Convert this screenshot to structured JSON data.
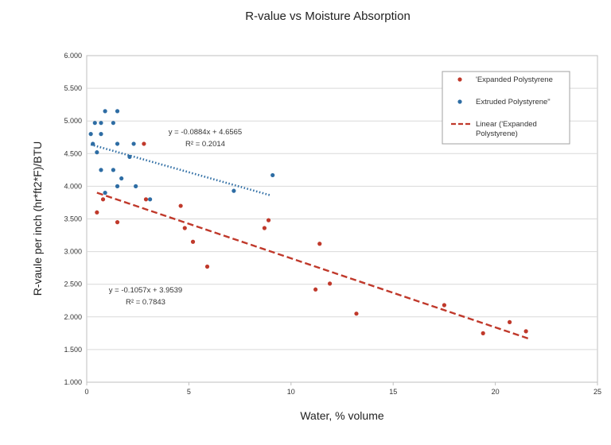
{
  "chart_data": {
    "type": "scatter",
    "title": "R-value vs Moisture Absorption",
    "xlabel": "Water, % volume",
    "ylabel": "R-vaule per inch (hr*ft2*F)/BTU",
    "xlim": [
      0,
      25
    ],
    "ylim": [
      1.0,
      6.0
    ],
    "x_ticks": [
      0,
      5,
      10,
      15,
      20,
      25
    ],
    "y_ticks": [
      1.0,
      1.5,
      2.0,
      2.5,
      3.0,
      3.5,
      4.0,
      4.5,
      5.0,
      5.5,
      6.0
    ],
    "y_tick_labels": [
      "1.000",
      "1.500",
      "2.000",
      "2.500",
      "3.000",
      "3.500",
      "4.000",
      "4.500",
      "5.000",
      "5.500",
      "6.000"
    ],
    "grid": "horizontal",
    "legend_position": "top-right",
    "colors": {
      "expanded": "#c0392b",
      "extruded": "#2e6da4"
    },
    "series": [
      {
        "name": "'Expanded Polystyrene",
        "color": "#c0392b",
        "points": [
          [
            0.5,
            3.6
          ],
          [
            0.8,
            3.8
          ],
          [
            1.5,
            3.45
          ],
          [
            2.8,
            4.65
          ],
          [
            2.9,
            3.8
          ],
          [
            4.6,
            3.7
          ],
          [
            4.8,
            3.36
          ],
          [
            5.2,
            3.15
          ],
          [
            5.9,
            2.77
          ],
          [
            8.7,
            3.36
          ],
          [
            8.9,
            3.48
          ],
          [
            11.2,
            2.42
          ],
          [
            11.4,
            3.12
          ],
          [
            11.9,
            2.51
          ],
          [
            13.2,
            2.05
          ],
          [
            17.5,
            2.18
          ],
          [
            19.4,
            1.75
          ],
          [
            20.7,
            1.92
          ],
          [
            21.5,
            1.78
          ]
        ],
        "trendline": {
          "slope": -0.1057,
          "intercept": 3.9539,
          "x_range": [
            0.5,
            21.6
          ],
          "style": "dashed",
          "label": "Linear ('Expanded Polystyrene)",
          "equation": "y = -0.1057x + 3.9539",
          "r2": "R² = 0.7843"
        }
      },
      {
        "name": "Extruded Polystyrene\"",
        "color": "#2e6da4",
        "points": [
          [
            0.2,
            4.8
          ],
          [
            0.3,
            4.65
          ],
          [
            0.4,
            4.97
          ],
          [
            0.5,
            4.52
          ],
          [
            0.7,
            4.97
          ],
          [
            0.7,
            4.8
          ],
          [
            0.7,
            4.25
          ],
          [
            0.9,
            5.15
          ],
          [
            0.9,
            3.9
          ],
          [
            1.3,
            4.97
          ],
          [
            1.3,
            4.25
          ],
          [
            1.5,
            5.15
          ],
          [
            1.5,
            4.65
          ],
          [
            1.5,
            4.0
          ],
          [
            1.7,
            4.12
          ],
          [
            2.1,
            4.45
          ],
          [
            2.3,
            4.65
          ],
          [
            2.4,
            4.0
          ],
          [
            3.1,
            3.8
          ],
          [
            7.2,
            3.93
          ],
          [
            9.1,
            4.17
          ]
        ],
        "trendline": {
          "slope": -0.0884,
          "intercept": 4.6565,
          "x_range": [
            0.2,
            9.0
          ],
          "style": "dotted",
          "equation": "y = -0.0884x + 4.6565",
          "r2": "R² = 0.2014"
        }
      }
    ]
  }
}
